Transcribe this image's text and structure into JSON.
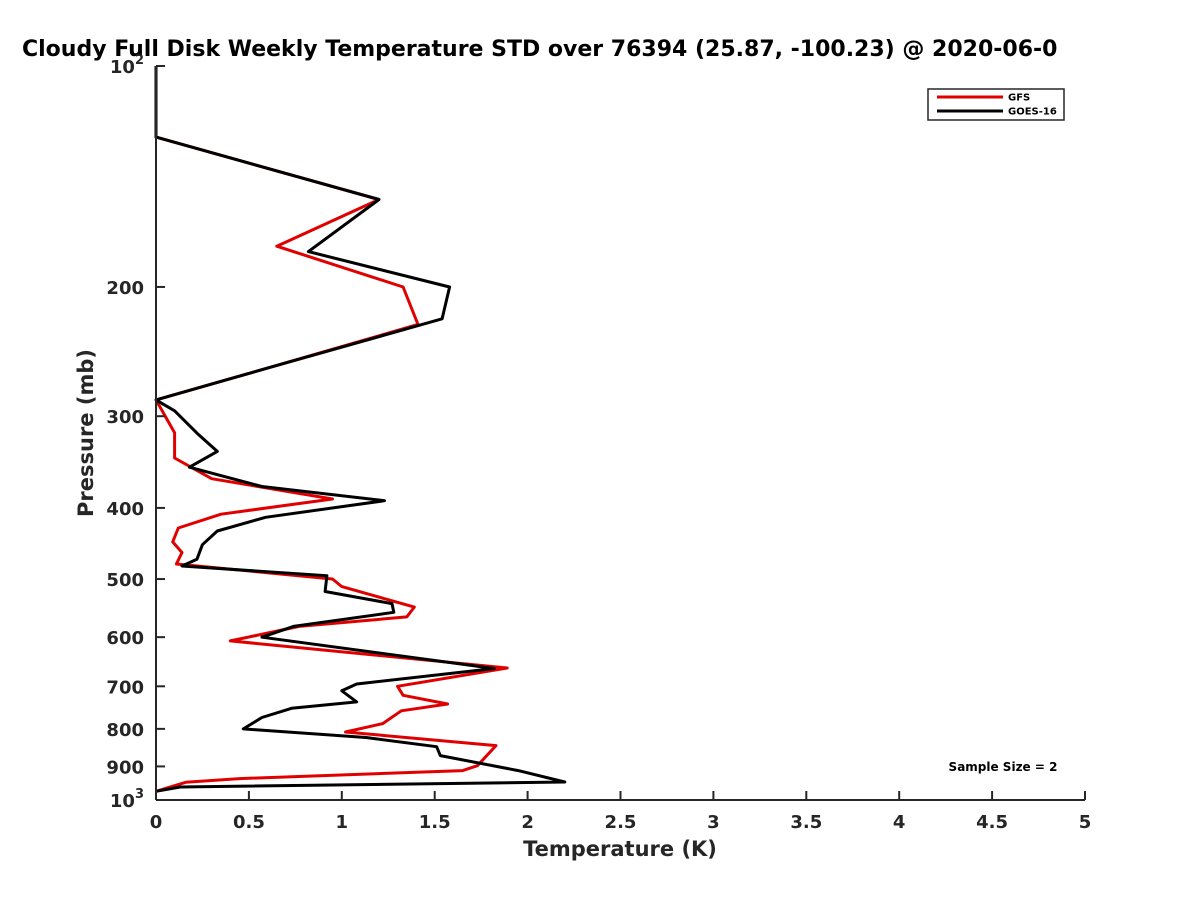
{
  "chart_data": {
    "type": "line",
    "title": "Cloudy Full Disk Weekly Temperature STD over 76394 (25.87, -100.23) @ 2020-06-0",
    "xlabel": "Temperature (K)",
    "ylabel": "Pressure (mb)",
    "xlim": [
      0,
      5
    ],
    "ylim": [
      1000,
      100
    ],
    "y_scale": "log",
    "x_ticks": [
      "0",
      "0.5",
      "1",
      "1.5",
      "2",
      "2.5",
      "3",
      "3.5",
      "4",
      "4.5",
      "5"
    ],
    "y_ticks": [
      {
        "value": 100,
        "label": "10",
        "sup": "2"
      },
      {
        "value": 200,
        "label": "200"
      },
      {
        "value": 300,
        "label": "300"
      },
      {
        "value": 400,
        "label": "400"
      },
      {
        "value": 500,
        "label": "500"
      },
      {
        "value": 600,
        "label": "600"
      },
      {
        "value": 700,
        "label": "700"
      },
      {
        "value": 800,
        "label": "800"
      },
      {
        "value": 900,
        "label": "900"
      },
      {
        "value": 1000,
        "label": "10",
        "sup": "3"
      }
    ],
    "legend_position": "top-right",
    "annotation": "Sample Size = 2",
    "series": [
      {
        "name": "GFS",
        "color": "#e00000",
        "points": [
          [
            0.0,
            100
          ],
          [
            0.0,
            125
          ],
          [
            1.2,
            152
          ],
          [
            0.65,
            176
          ],
          [
            1.33,
            200
          ],
          [
            1.41,
            225
          ],
          [
            0.6,
            258
          ],
          [
            0.0,
            285
          ],
          [
            0.1,
            316
          ],
          [
            0.1,
            342
          ],
          [
            0.3,
            365
          ],
          [
            0.95,
            389
          ],
          [
            0.35,
            408
          ],
          [
            0.12,
            426
          ],
          [
            0.09,
            445
          ],
          [
            0.14,
            460
          ],
          [
            0.11,
            477
          ],
          [
            0.95,
            500
          ],
          [
            1.0,
            512
          ],
          [
            1.39,
            546
          ],
          [
            1.35,
            563
          ],
          [
            0.77,
            580
          ],
          [
            0.4,
            607
          ],
          [
            1.89,
            661
          ],
          [
            1.3,
            700
          ],
          [
            1.33,
            720
          ],
          [
            1.57,
            740
          ],
          [
            1.32,
            756
          ],
          [
            1.22,
            787
          ],
          [
            1.02,
            808
          ],
          [
            1.83,
            843
          ],
          [
            1.73,
            898
          ],
          [
            1.65,
            912
          ],
          [
            0.45,
            935
          ],
          [
            0.16,
            946
          ],
          [
            0.0,
            973
          ]
        ]
      },
      {
        "name": "GOES-16",
        "color": "#000000",
        "points": [
          [
            0.0,
            100
          ],
          [
            0.0,
            125
          ],
          [
            1.2,
            152
          ],
          [
            0.82,
            179
          ],
          [
            1.58,
            200
          ],
          [
            1.54,
            221
          ],
          [
            0.6,
            258
          ],
          [
            0.0,
            285
          ],
          [
            0.1,
            295
          ],
          [
            0.23,
            318
          ],
          [
            0.33,
            335
          ],
          [
            0.18,
            352
          ],
          [
            0.57,
            374
          ],
          [
            1.23,
            391
          ],
          [
            0.59,
            412
          ],
          [
            0.33,
            430
          ],
          [
            0.25,
            449
          ],
          [
            0.22,
            470
          ],
          [
            0.14,
            480
          ],
          [
            0.92,
            495
          ],
          [
            0.91,
            520
          ],
          [
            1.27,
            540
          ],
          [
            1.28,
            555
          ],
          [
            0.74,
            580
          ],
          [
            0.57,
            600
          ],
          [
            1.82,
            662
          ],
          [
            1.08,
            695
          ],
          [
            1.0,
            710
          ],
          [
            1.08,
            735
          ],
          [
            0.73,
            750
          ],
          [
            0.57,
            772
          ],
          [
            0.47,
            800
          ],
          [
            1.13,
            822
          ],
          [
            1.51,
            846
          ],
          [
            1.53,
            870
          ],
          [
            1.95,
            912
          ],
          [
            2.2,
            945
          ],
          [
            0.13,
            960
          ],
          [
            0.0,
            973
          ]
        ]
      }
    ]
  }
}
